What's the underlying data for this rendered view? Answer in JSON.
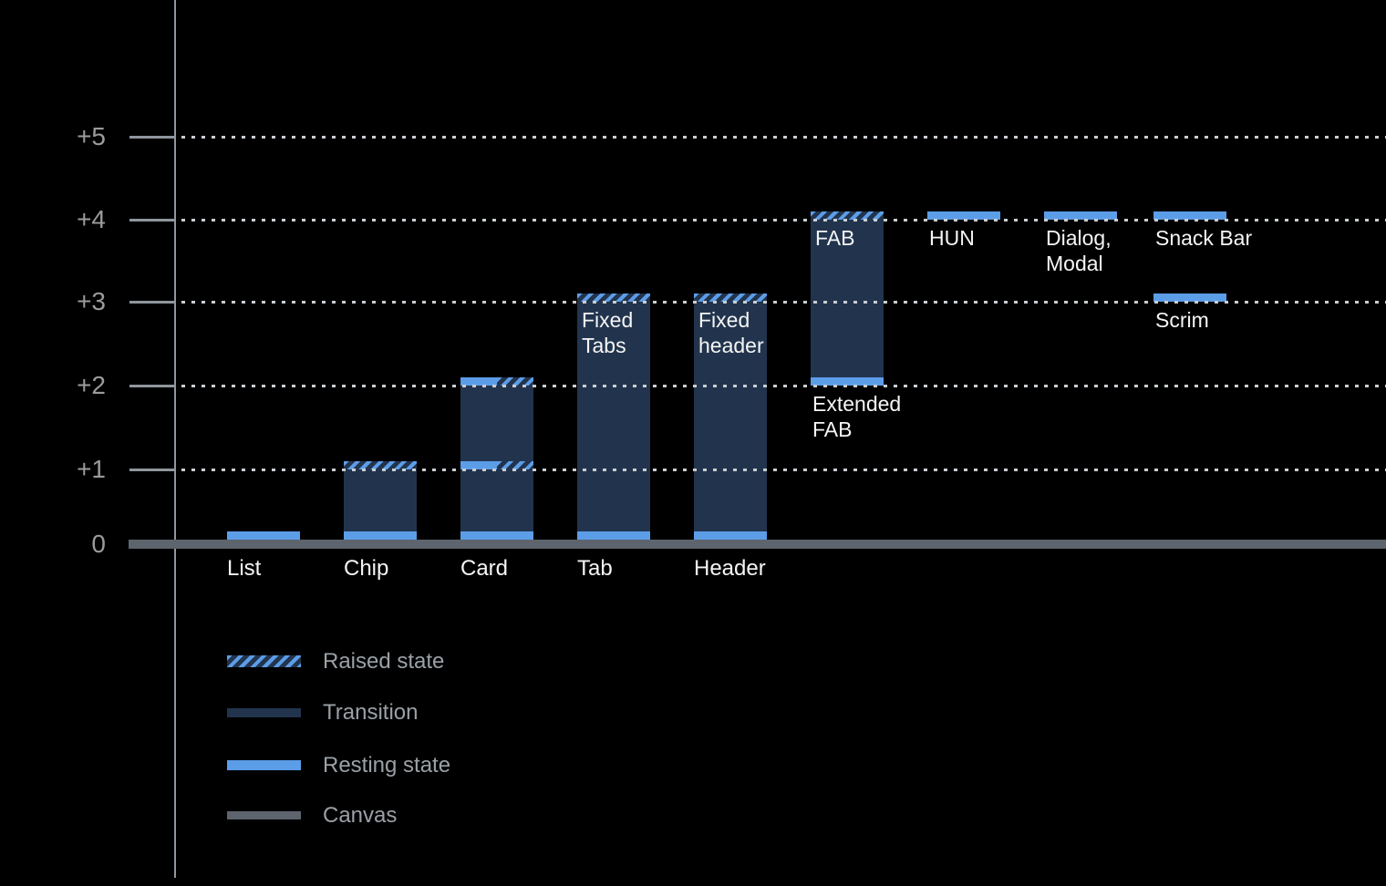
{
  "chart_data": {
    "type": "bar",
    "title": "",
    "description": "Material Design elevation diagram: component elevation levels above the canvas",
    "y_axis": {
      "ticks": [
        {
          "label": "+5",
          "level": 5
        },
        {
          "label": "+4",
          "level": 4
        },
        {
          "label": "+3",
          "level": 3
        },
        {
          "label": "+2",
          "level": 2
        },
        {
          "label": "+1",
          "level": 1
        },
        {
          "label": "0",
          "level": 0
        }
      ],
      "ylim": [
        0,
        5.5
      ],
      "gridlines": "dotted"
    },
    "legend": [
      {
        "label": "Raised state",
        "swatch": "raised"
      },
      {
        "label": "Transition",
        "swatch": "transition"
      },
      {
        "label": "Resting state",
        "swatch": "resting"
      },
      {
        "label": "Canvas",
        "swatch": "canvas"
      }
    ],
    "bars": [
      {
        "name": "list",
        "col": 0,
        "axis_label": "List",
        "segments": [
          {
            "kind": "resting",
            "from": 0,
            "to": 0.1
          }
        ]
      },
      {
        "name": "chip",
        "col": 1,
        "axis_label": "Chip",
        "segments": [
          {
            "kind": "resting",
            "from": 0,
            "to": 0.1
          },
          {
            "kind": "transition",
            "from": 0.1,
            "to": 1
          },
          {
            "kind": "raised",
            "from": 1,
            "to": 1.1
          }
        ]
      },
      {
        "name": "card",
        "col": 2,
        "axis_label": "Card",
        "segments": [
          {
            "kind": "resting",
            "from": 0,
            "to": 0.1
          },
          {
            "kind": "transition",
            "from": 0.1,
            "to": 2
          },
          {
            "kind": "resting_raised",
            "from": 1,
            "to": 1.1
          },
          {
            "kind": "resting_raised",
            "from": 2,
            "to": 2.1
          }
        ]
      },
      {
        "name": "tab",
        "col": 3,
        "axis_label": "Tab",
        "inside_label": "Fixed\nTabs",
        "segments": [
          {
            "kind": "resting",
            "from": 0,
            "to": 0.1
          },
          {
            "kind": "transition",
            "from": 0.1,
            "to": 3
          },
          {
            "kind": "raised",
            "from": 3,
            "to": 3.1
          }
        ]
      },
      {
        "name": "header",
        "col": 4,
        "axis_label": "Header",
        "inside_label": "Fixed\nheader",
        "segments": [
          {
            "kind": "resting",
            "from": 0,
            "to": 0.1
          },
          {
            "kind": "transition",
            "from": 0.1,
            "to": 3
          },
          {
            "kind": "raised",
            "from": 3,
            "to": 3.1
          }
        ]
      },
      {
        "name": "fab",
        "col": 5,
        "inside_label": "FAB",
        "below_label": "Extended\nFAB",
        "below_at": 2,
        "segments": [
          {
            "kind": "resting",
            "from": 2,
            "to": 2.1
          },
          {
            "kind": "transition",
            "from": 2.1,
            "to": 4
          },
          {
            "kind": "raised",
            "from": 4,
            "to": 4.1
          }
        ]
      },
      {
        "name": "hun",
        "col": 6,
        "below_label": "HUN",
        "below_at": 4,
        "segments": [
          {
            "kind": "resting",
            "from": 4,
            "to": 4.1
          }
        ]
      },
      {
        "name": "dialog-modal",
        "col": 7,
        "below_label": "Dialog,\nModal",
        "below_at": 4,
        "segments": [
          {
            "kind": "resting",
            "from": 4,
            "to": 4.1
          }
        ]
      },
      {
        "name": "snack-bar",
        "col": 8,
        "below_label": "Snack Bar",
        "below_at": 4,
        "segments": [
          {
            "kind": "resting",
            "from": 4,
            "to": 4.1
          }
        ]
      },
      {
        "name": "scrim",
        "col": 8,
        "below_label": "Scrim",
        "below_at": 3,
        "segments": [
          {
            "kind": "resting",
            "from": 3,
            "to": 3.1
          }
        ]
      }
    ],
    "colors": {
      "background": "#000000",
      "resting": "#5C9DE8",
      "transition": "#22344D",
      "canvas": "#5D646D",
      "axis": "#8F969D",
      "gridline": "#C9CDD1",
      "axis_text": "#9B9B9B",
      "label_text": "#F5F5F5",
      "legend_text": "#9AA0A6"
    }
  }
}
